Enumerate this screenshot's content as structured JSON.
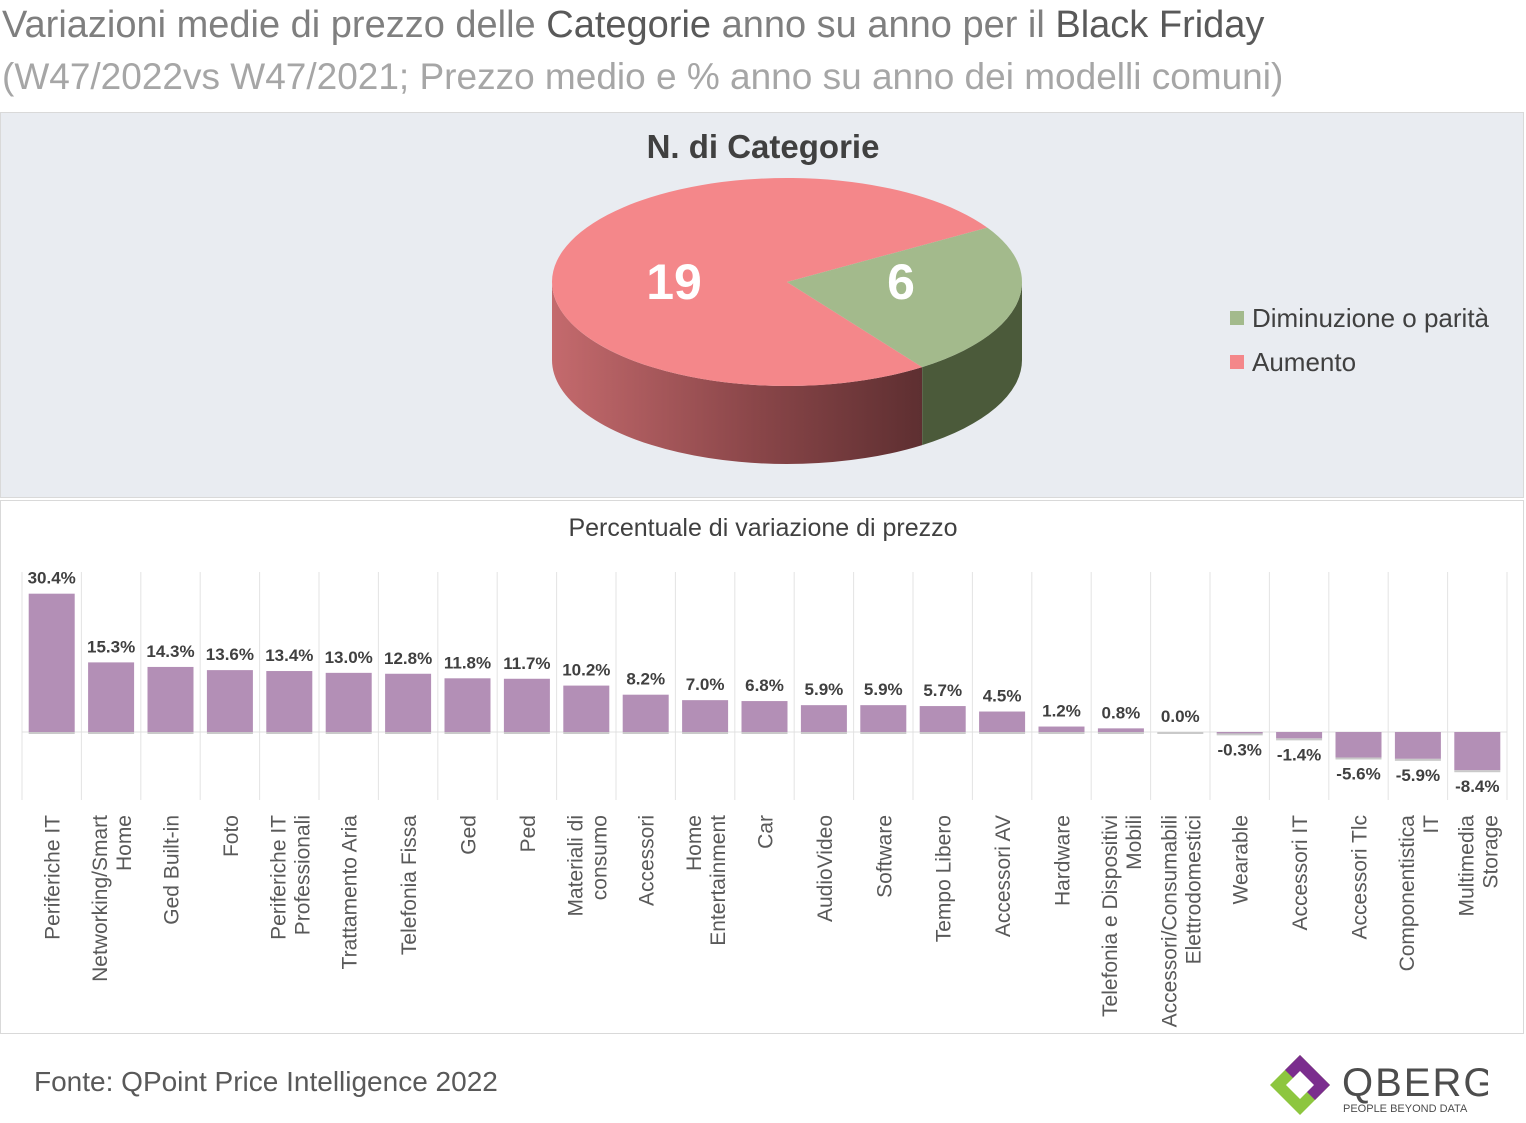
{
  "header": {
    "title_part1": "Variazioni medie di prezzo delle ",
    "title_bold1": "Categorie",
    "title_part2": " anno su anno per il ",
    "title_bold2": "Black Friday",
    "subtitle": "(W47/2022vs W47/2021; Prezzo medio e % anno su anno dei modelli comuni)"
  },
  "footer": {
    "source": "Fonte: QPoint Price Intelligence 2022",
    "logo_name": "QBERG",
    "logo_tagline": "PEOPLE BEYOND DATA"
  },
  "colors": {
    "increase": "#f4878a",
    "decrease": "#a3ba8c",
    "bar": "#b38fb6",
    "panel_bg": "#e9ecf1"
  },
  "chart_data": [
    {
      "type": "pie",
      "title": "N. di Categorie",
      "slices": [
        {
          "label": "Aumento",
          "value": 19
        },
        {
          "label": "Diminuzione o parità",
          "value": 6
        }
      ],
      "legend": [
        "Diminuzione o parità",
        "Aumento"
      ],
      "legend_position": "right"
    },
    {
      "type": "bar",
      "title": "Percentuale di variazione di prezzo",
      "categories": [
        "Periferiche IT",
        "Networking/Smart Home",
        "Ged Built-in",
        "Foto",
        "Periferiche IT Professionali",
        "Trattamento Aria",
        "Telefonia Fissa",
        "Ged",
        "Ped",
        "Materiali di consumo",
        "Accessori",
        "Home Entertainment",
        "Car",
        "AudioVideo",
        "Software",
        "Tempo Libero",
        "Accessori AV",
        "Hardware",
        "Telefonia e Dispositivi Mobili",
        "Accessori/Consumabili Elettrodomestici",
        "Wearable",
        "Accessori IT",
        "Accessori Tlc",
        "Componentistica IT",
        "Multimedia Storage"
      ],
      "values": [
        30.4,
        15.3,
        14.3,
        13.6,
        13.4,
        13.0,
        12.8,
        11.8,
        11.7,
        10.2,
        8.2,
        7.0,
        6.8,
        5.9,
        5.9,
        5.7,
        4.5,
        1.2,
        0.8,
        0.0,
        -0.3,
        -1.4,
        -5.6,
        -5.9,
        -8.4
      ],
      "labels": [
        "30.4%",
        "15.3%",
        "14.3%",
        "13.6%",
        "13.4%",
        "13.0%",
        "12.8%",
        "11.8%",
        "11.7%",
        "10.2%",
        "8.2%",
        "7.0%",
        "6.8%",
        "5.9%",
        "5.9%",
        "5.7%",
        "4.5%",
        "1.2%",
        "0.8%",
        "0.0%",
        "-0.3%",
        "-1.4%",
        "-5.6%",
        "-5.9%",
        "-8.4%"
      ],
      "grid": "vertical"
    }
  ]
}
